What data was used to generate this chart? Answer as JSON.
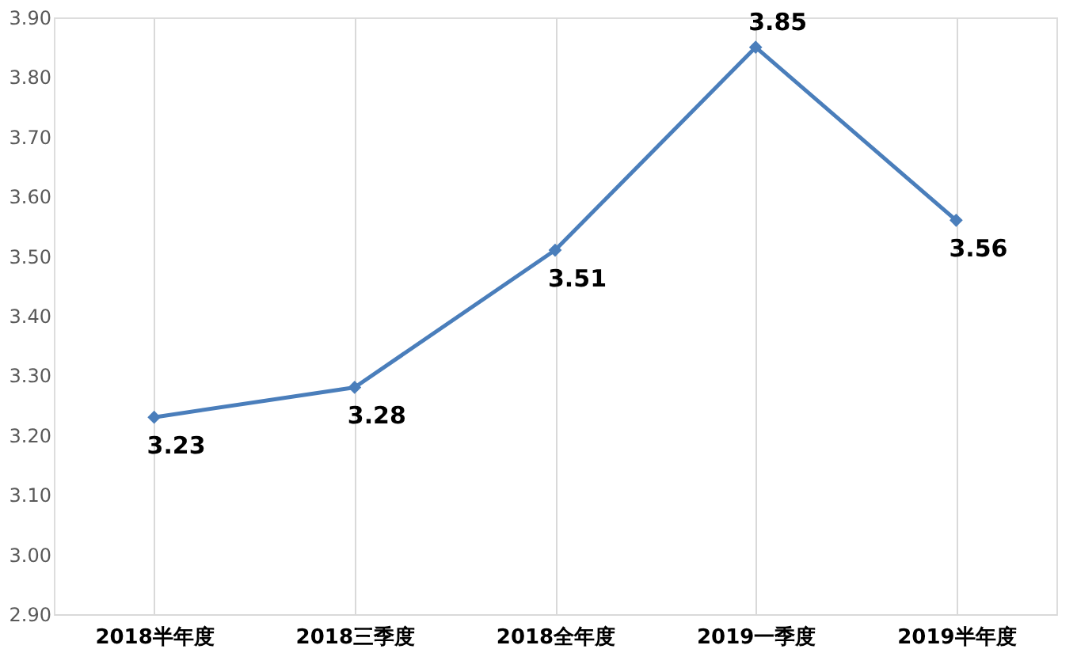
{
  "chart_data": {
    "type": "line",
    "categories": [
      "2018半年度",
      "2018三季度",
      "2018全年度",
      "2019一季度",
      "2019半年度"
    ],
    "series": [
      {
        "color": "#4a7ebb",
        "values": [
          3.23,
          3.28,
          3.51,
          3.85,
          3.56
        ]
      }
    ],
    "ylim": [
      2.9,
      3.9
    ],
    "yticks": [
      {
        "value": 2.9,
        "label": "2.90"
      },
      {
        "value": 3.0,
        "label": "3.00"
      },
      {
        "value": 3.1,
        "label": "3.10"
      },
      {
        "value": 3.2,
        "label": "3.20"
      },
      {
        "value": 3.3,
        "label": "3.30"
      },
      {
        "value": 3.4,
        "label": "3.40"
      },
      {
        "value": 3.5,
        "label": "3.50"
      },
      {
        "value": 3.6,
        "label": "3.60"
      },
      {
        "value": 3.7,
        "label": "3.70"
      },
      {
        "value": 3.8,
        "label": "3.80"
      },
      {
        "value": 3.9,
        "label": "3.90"
      }
    ],
    "grid": "x",
    "marker": "diamond",
    "line_style": "solid",
    "data_labels": true
  }
}
